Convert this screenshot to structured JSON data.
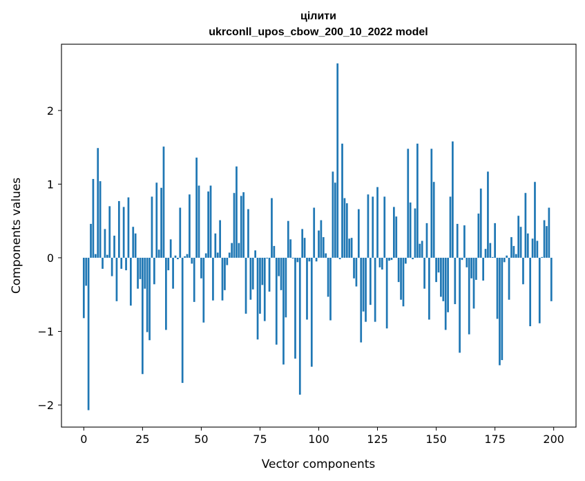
{
  "chart_data": {
    "type": "bar",
    "title": "цілити",
    "subtitle": "ukrconll_upos_cbow_200_10_2022 model",
    "xlabel": "Vector components",
    "ylabel": "Components values",
    "xlim": [
      -9.5,
      209.5
    ],
    "ylim": [
      -2.3,
      2.9
    ],
    "xticks": [
      0,
      25,
      50,
      75,
      100,
      125,
      150,
      175,
      200
    ],
    "yticks": [
      -2,
      -1,
      0,
      1,
      2
    ],
    "grid": false,
    "bar_color": "#1f77b4",
    "x": [
      0,
      1,
      2,
      3,
      4,
      5,
      6,
      7,
      8,
      9,
      10,
      11,
      12,
      13,
      14,
      15,
      16,
      17,
      18,
      19,
      20,
      21,
      22,
      23,
      24,
      25,
      26,
      27,
      28,
      29,
      30,
      31,
      32,
      33,
      34,
      35,
      36,
      37,
      38,
      39,
      40,
      41,
      42,
      43,
      44,
      45,
      46,
      47,
      48,
      49,
      50,
      51,
      52,
      53,
      54,
      55,
      56,
      57,
      58,
      59,
      60,
      61,
      62,
      63,
      64,
      65,
      66,
      67,
      68,
      69,
      70,
      71,
      72,
      73,
      74,
      75,
      76,
      77,
      78,
      79,
      80,
      81,
      82,
      83,
      84,
      85,
      86,
      87,
      88,
      89,
      90,
      91,
      92,
      93,
      94,
      95,
      96,
      97,
      98,
      99,
      100,
      101,
      102,
      103,
      104,
      105,
      106,
      107,
      108,
      109,
      110,
      111,
      112,
      113,
      114,
      115,
      116,
      117,
      118,
      119,
      120,
      121,
      122,
      123,
      124,
      125,
      126,
      127,
      128,
      129,
      130,
      131,
      132,
      133,
      134,
      135,
      136,
      137,
      138,
      139,
      140,
      141,
      142,
      143,
      144,
      145,
      146,
      147,
      148,
      149,
      150,
      151,
      152,
      153,
      154,
      155,
      156,
      157,
      158,
      159,
      160,
      161,
      162,
      163,
      164,
      165,
      166,
      167,
      168,
      169,
      170,
      171,
      172,
      173,
      174,
      175,
      176,
      177,
      178,
      179,
      180,
      181,
      182,
      183,
      184,
      185,
      186,
      187,
      188,
      189,
      190,
      191,
      192,
      193,
      194,
      195,
      196,
      197,
      198,
      199
    ],
    "values": [
      -0.82,
      -0.38,
      -2.07,
      0.46,
      1.07,
      0.05,
      1.49,
      1.04,
      -0.15,
      0.39,
      0.04,
      0.7,
      -0.25,
      0.3,
      -0.59,
      0.77,
      -0.15,
      0.69,
      -0.17,
      0.82,
      -0.65,
      0.42,
      0.33,
      -0.42,
      -0.29,
      -1.58,
      -0.42,
      -1.01,
      -1.12,
      0.83,
      -0.36,
      1.02,
      0.11,
      0.95,
      1.51,
      -0.98,
      -0.17,
      0.25,
      -0.42,
      0.03,
      -0.02,
      0.68,
      -1.7,
      0.02,
      0.05,
      0.86,
      -0.08,
      -0.6,
      1.36,
      0.98,
      -0.28,
      -0.88,
      0.06,
      0.9,
      0.98,
      -0.58,
      0.33,
      0.07,
      0.51,
      -0.58,
      -0.44,
      -0.1,
      0.07,
      0.2,
      0.88,
      1.24,
      0.2,
      0.84,
      0.89,
      -0.76,
      0.66,
      -0.57,
      -0.43,
      0.1,
      -1.11,
      -0.76,
      -0.37,
      -0.86,
      -0.01,
      -0.46,
      0.81,
      0.16,
      -1.18,
      -0.25,
      -0.44,
      -1.45,
      -0.81,
      0.5,
      0.25,
      -0.01,
      -1.37,
      -0.06,
      -1.86,
      0.39,
      0.27,
      -0.84,
      -0.05,
      -1.48,
      0.68,
      -0.05,
      0.37,
      0.51,
      0.28,
      0.06,
      -0.53,
      -0.85,
      1.17,
      1.02,
      2.64,
      -0.02,
      1.55,
      0.81,
      0.74,
      0.26,
      0.27,
      -0.28,
      -0.39,
      0.66,
      -1.15,
      -0.73,
      -0.87,
      0.86,
      -0.64,
      0.83,
      -0.87,
      0.96,
      -0.13,
      -0.16,
      0.83,
      -0.96,
      -0.04,
      -0.03,
      0.69,
      0.56,
      -0.33,
      -0.57,
      -0.66,
      -0.08,
      1.48,
      0.75,
      -0.02,
      0.67,
      1.55,
      0.19,
      0.23,
      -0.42,
      0.47,
      -0.84,
      1.48,
      1.03,
      -0.33,
      -0.2,
      -0.53,
      -0.59,
      -0.98,
      -0.74,
      0.83,
      1.58,
      -0.63,
      0.46,
      -1.29,
      -0.03,
      0.44,
      -0.13,
      -1.04,
      -0.28,
      -0.69,
      -0.3,
      0.6,
      0.94,
      -0.31,
      0.12,
      1.17,
      0.2,
      0.01,
      0.47,
      -0.83,
      -1.46,
      -1.39,
      -0.06,
      0.03,
      -0.57,
      0.28,
      0.16,
      0.05,
      0.57,
      0.42,
      -0.36,
      0.88,
      0.33,
      -0.93,
      0.26,
      1.03,
      0.23,
      -0.89,
      0.01,
      0.51,
      0.43,
      0.68,
      -0.59
    ]
  }
}
